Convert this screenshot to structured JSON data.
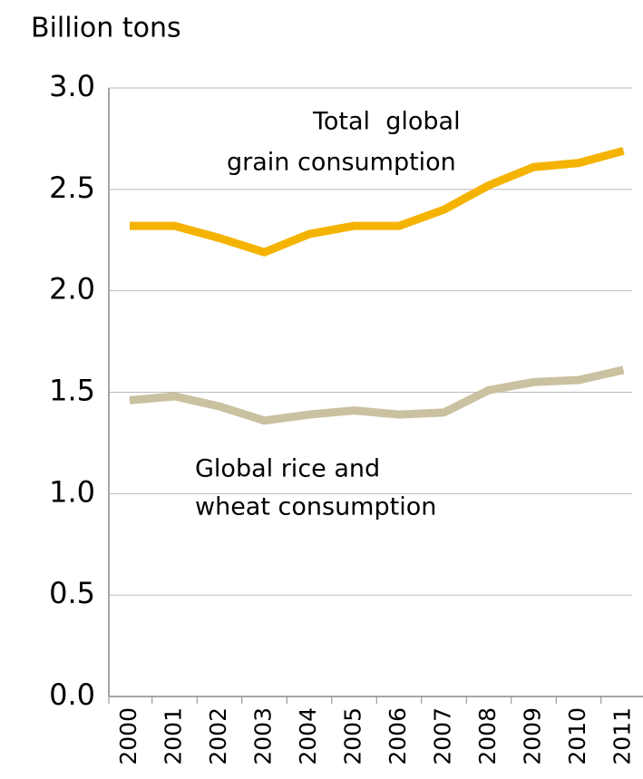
{
  "chart_data": {
    "type": "line",
    "title": "Billion tons",
    "categories": [
      "2000",
      "2001",
      "2002",
      "2003",
      "2004",
      "2005",
      "2006",
      "2007",
      "2008",
      "2009",
      "2010",
      "2011"
    ],
    "series": [
      {
        "color": "#f5b301",
        "values": [
          2.32,
          2.32,
          2.26,
          2.19,
          2.28,
          2.32,
          2.32,
          2.4,
          2.52,
          2.61,
          2.63,
          2.69
        ]
      },
      {
        "color": "#c9c1a0",
        "values": [
          1.46,
          1.48,
          1.43,
          1.36,
          1.39,
          1.41,
          1.39,
          1.4,
          1.51,
          1.55,
          1.56,
          1.61
        ]
      }
    ],
    "annotations": [
      {
        "lines": [
          "Total  global",
          "grain consumption"
        ]
      },
      {
        "lines": [
          "Global rice and",
          "wheat consumption"
        ]
      }
    ],
    "ylim": [
      0,
      3
    ],
    "yticks": [
      {
        "value": 0,
        "label": "0.0"
      },
      0.5,
      {
        "value": 1,
        "label": "1.0"
      },
      1.5,
      {
        "value": 2,
        "label": "2.0"
      },
      2.5,
      {
        "value": 3,
        "label": "3.0"
      }
    ],
    "grid": true
  }
}
